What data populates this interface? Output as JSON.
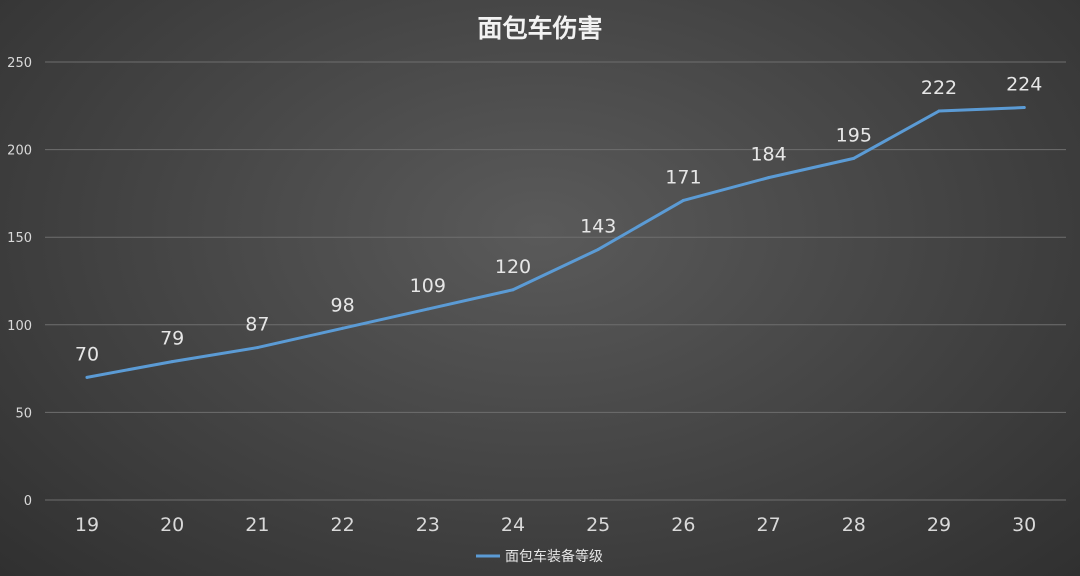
{
  "chart_data": {
    "type": "line",
    "title": "面包车伤害",
    "x": [
      "19",
      "20",
      "21",
      "22",
      "23",
      "24",
      "25",
      "26",
      "27",
      "28",
      "29",
      "30"
    ],
    "series": [
      {
        "name": "面包车装备等级",
        "values": [
          70,
          79,
          87,
          98,
          109,
          120,
          143,
          171,
          184,
          195,
          222,
          224
        ],
        "color": "#5b9bd5"
      }
    ],
    "ylim": [
      0,
      250
    ],
    "yticks": [
      0,
      50,
      100,
      150,
      200,
      250
    ],
    "grid": true,
    "legend": "bottom",
    "data_labels": true
  }
}
